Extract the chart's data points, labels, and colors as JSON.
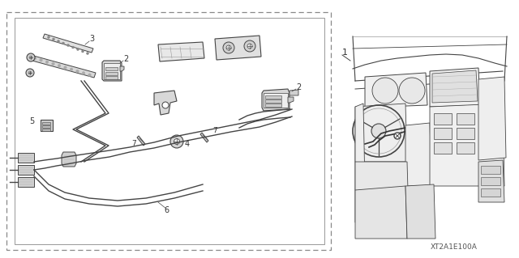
{
  "bg_color": "#ffffff",
  "fig_width": 6.4,
  "fig_height": 3.19,
  "dpi": 100,
  "diagram_code": "XT2A1E100A",
  "line_color": "#444444",
  "dark_gray": "#333333",
  "mid_gray": "#888888",
  "light_gray": "#cccccc"
}
